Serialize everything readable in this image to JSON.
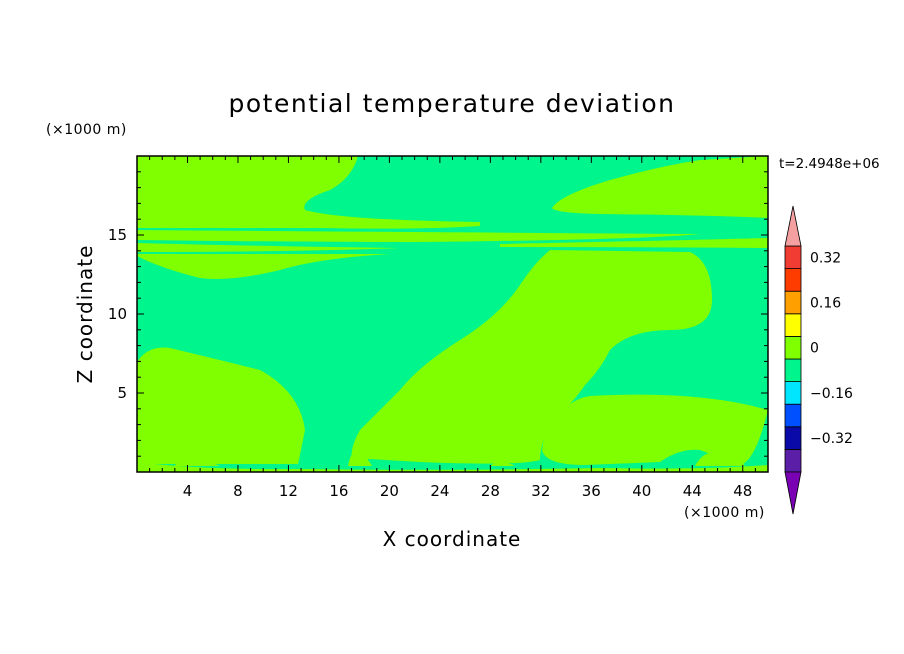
{
  "chart_data": {
    "type": "heatmap",
    "title": "potential temperature deviation",
    "xlabel": "X coordinate",
    "ylabel": "Z coordinate",
    "x_unit": "(×1000 m)",
    "y_unit": "(×1000 m)",
    "time_label": "t=2.4948e+06",
    "xlim": [
      0,
      50
    ],
    "ylim": [
      0,
      20
    ],
    "x_ticks": [
      4,
      8,
      12,
      16,
      20,
      24,
      28,
      32,
      36,
      40,
      44,
      48
    ],
    "y_ticks": [
      5,
      10,
      15
    ],
    "colorbar": {
      "levels": [
        -0.4,
        -0.32,
        -0.24,
        -0.16,
        -0.08,
        0,
        0.08,
        0.16,
        0.24,
        0.32,
        0.4
      ],
      "tick_labels": [
        {
          "value": 0.32,
          "label": "0.32"
        },
        {
          "value": 0.16,
          "label": "0.16"
        },
        {
          "value": 0,
          "label": "0"
        },
        {
          "value": -0.16,
          "label": "−0.16"
        },
        {
          "value": -0.32,
          "label": "−0.32"
        }
      ],
      "colors": [
        "#5a1fa6",
        "#0a0aa8",
        "#0050ff",
        "#00e6ff",
        "#00f58c",
        "#7fff00",
        "#ffff00",
        "#ffa000",
        "#ff3c00",
        "#f03c32"
      ],
      "under_color": "#7a00b4",
      "over_color": "#f5a0a0"
    },
    "fields": {
      "background_color": "#00f58c",
      "positive_color": "#7fff00",
      "description_values": {
        "background": -0.04,
        "regions": 0.04
      }
    }
  }
}
